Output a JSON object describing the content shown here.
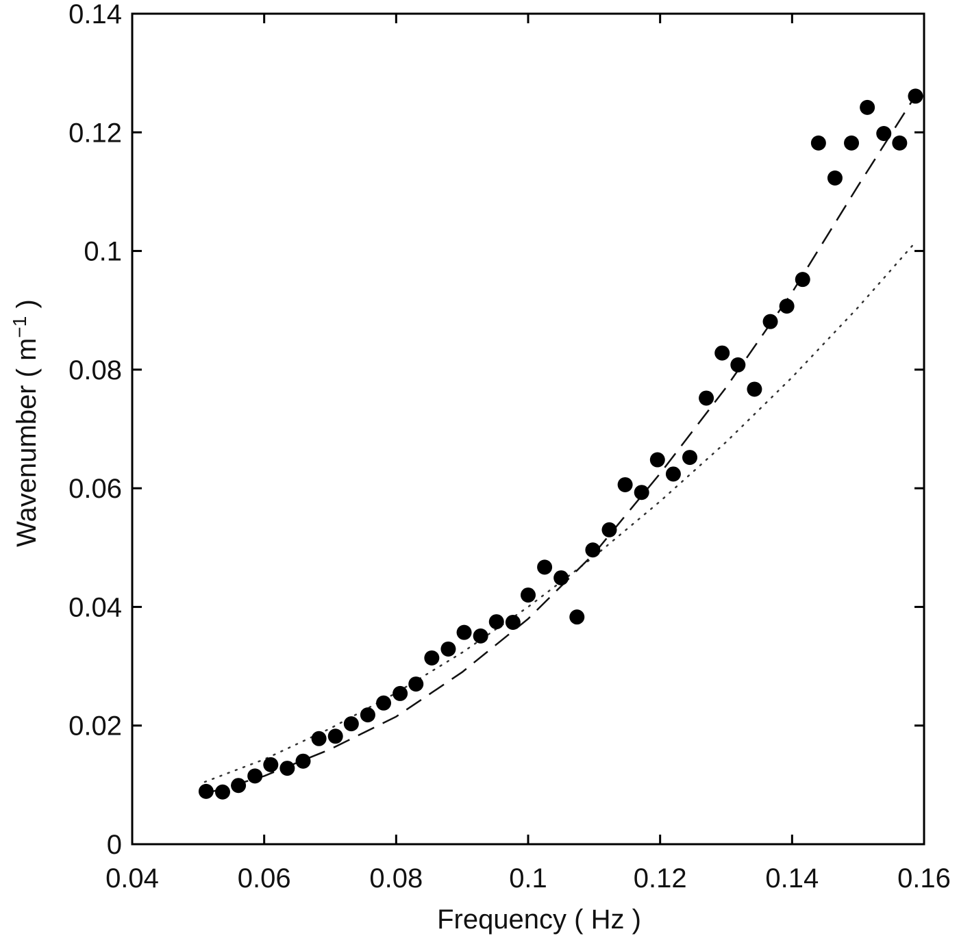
{
  "chart_data": {
    "type": "scatter",
    "title": "",
    "xlabel": "Frequency ( Hz )",
    "ylabel": {
      "prefix": "Wavenumber ( m",
      "sup": "−1",
      "suffix": " )"
    },
    "xlim": [
      0.04,
      0.16
    ],
    "ylim": [
      0,
      0.14
    ],
    "xticks": [
      0.04,
      0.06,
      0.08,
      0.1,
      0.12,
      0.14,
      0.16
    ],
    "xtick_labels": [
      "0.04",
      "0.06",
      "0.08",
      "0.1",
      "0.12",
      "0.14",
      "0.16"
    ],
    "yticks": [
      0,
      0.02,
      0.04,
      0.06,
      0.08,
      0.1,
      0.12,
      0.14
    ],
    "ytick_labels": [
      "0",
      "0.02",
      "0.04",
      "0.06",
      "0.08",
      "0.1",
      "0.12",
      "0.14"
    ],
    "grid": false,
    "legend": "none",
    "points": {
      "x": [
        0.0512,
        0.0537,
        0.0561,
        0.0586,
        0.061,
        0.0635,
        0.0659,
        0.0683,
        0.0708,
        0.0732,
        0.0757,
        0.0781,
        0.0806,
        0.083,
        0.0854,
        0.0879,
        0.0903,
        0.0928,
        0.0952,
        0.0977,
        0.1,
        0.1025,
        0.105,
        0.1074,
        0.1098,
        0.1123,
        0.1147,
        0.1172,
        0.1196,
        0.122,
        0.1245,
        0.127,
        0.1294,
        0.1318,
        0.1343,
        0.1367,
        0.1392,
        0.1416,
        0.144,
        0.1465,
        0.149,
        0.1514,
        0.1539,
        0.1563,
        0.1587
      ],
      "y": [
        0.0089,
        0.0088,
        0.0099,
        0.0115,
        0.0134,
        0.0128,
        0.014,
        0.0178,
        0.0182,
        0.0203,
        0.0218,
        0.0238,
        0.0254,
        0.027,
        0.0314,
        0.0329,
        0.0357,
        0.0351,
        0.0375,
        0.0374,
        0.042,
        0.0467,
        0.0449,
        0.0383,
        0.0496,
        0.053,
        0.0606,
        0.0593,
        0.0648,
        0.0624,
        0.0652,
        0.0752,
        0.0828,
        0.0808,
        0.0767,
        0.0881,
        0.0907,
        0.0952,
        0.1182,
        0.1123,
        0.1182,
        0.1242,
        0.1198,
        0.1182,
        0.1261
      ]
    },
    "dashed_curve": {
      "x": [
        0.051,
        0.06,
        0.07,
        0.08,
        0.09,
        0.1,
        0.11,
        0.12,
        0.13,
        0.14,
        0.15,
        0.1587
      ],
      "y": [
        0.0085,
        0.0115,
        0.016,
        0.0215,
        0.029,
        0.038,
        0.049,
        0.0625,
        0.077,
        0.093,
        0.111,
        0.1262
      ]
    },
    "dotted_curve": {
      "x": [
        0.051,
        0.06,
        0.07,
        0.08,
        0.09,
        0.1,
        0.11,
        0.12,
        0.13,
        0.14,
        0.15,
        0.1587
      ],
      "y": [
        0.0105,
        0.0143,
        0.0195,
        0.0255,
        0.0323,
        0.04,
        0.0485,
        0.0578,
        0.0678,
        0.0787,
        0.0905,
        0.1015
      ]
    }
  }
}
